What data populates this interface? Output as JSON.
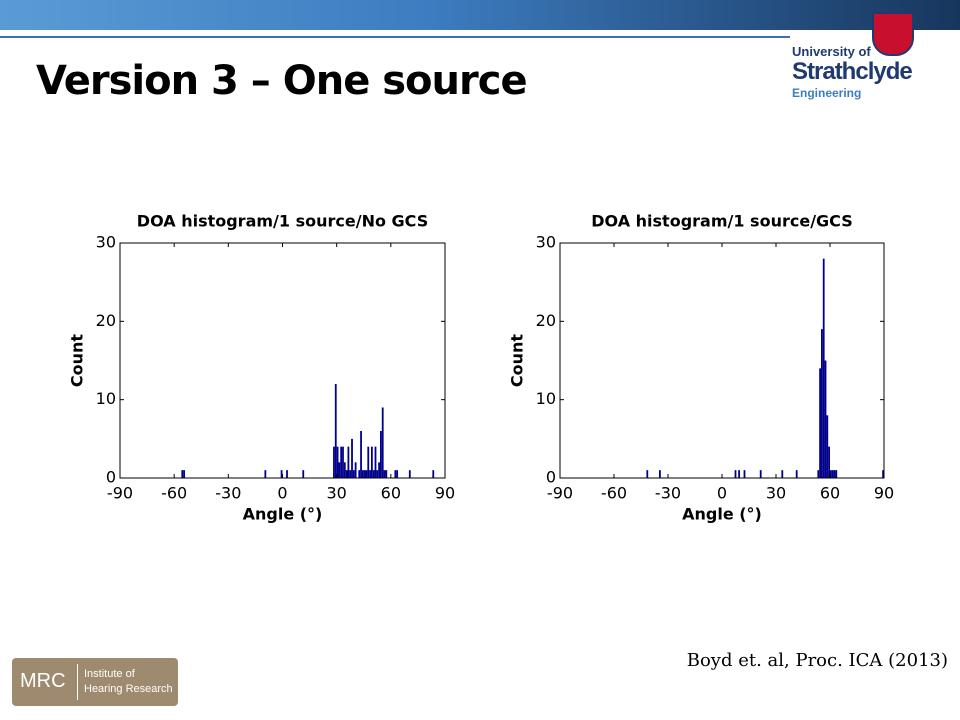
{
  "slide": {
    "title": "Version 3 – One source",
    "citation": "Boyd et. al, Proc. ICA (2013)",
    "logo": {
      "line1": "University of",
      "line2": "Strathclyde",
      "line3": "Engineering"
    },
    "mrc": {
      "name": "MRC",
      "line1": "Institute of",
      "line2": "Hearing Research"
    }
  },
  "chart_data": [
    {
      "type": "histogram",
      "title": "DOA histogram/1 source/No GCS",
      "x_label": "Angle (°)",
      "y_label": "Count",
      "color": "#00008b",
      "bins": [
        -90,
        -89,
        -88,
        -87,
        -86,
        -85,
        -84,
        -83,
        -82,
        -81,
        -80,
        -79,
        -78,
        -77,
        -76,
        -75,
        -74,
        -73,
        -72,
        -71,
        -70,
        -69,
        -68,
        -67,
        -66,
        -65,
        -64,
        -63,
        -62,
        -61,
        -60,
        -59,
        -58,
        -57,
        -56,
        -55,
        -54,
        -53,
        -52,
        -51,
        -50,
        -49,
        -48,
        -47,
        -46,
        -45,
        -44,
        -43,
        -42,
        -41,
        -40,
        -39,
        -38,
        -37,
        -36,
        -35,
        -34,
        -33,
        -32,
        -31,
        -30,
        -29,
        -28,
        -27,
        -26,
        -25,
        -24,
        -23,
        -22,
        -21,
        -20,
        -19,
        -18,
        -17,
        -16,
        -15,
        -14,
        -13,
        -12,
        -11,
        -10,
        -9,
        -8,
        -7,
        -6,
        -5,
        -4,
        -3,
        -2,
        -1,
        0,
        1,
        2,
        3,
        4,
        5,
        6,
        7,
        8,
        9,
        10,
        11,
        12,
        13,
        14,
        15,
        16,
        17,
        18,
        19,
        20,
        21,
        22,
        23,
        24,
        25,
        26,
        27,
        28,
        29,
        30,
        31,
        32,
        33,
        34,
        35,
        36,
        37,
        38,
        39,
        40,
        41,
        42,
        43,
        44,
        45,
        46,
        47,
        48,
        49,
        50,
        51,
        52,
        53,
        54,
        55,
        56,
        57,
        58,
        59,
        60,
        61,
        62,
        63,
        64,
        65,
        66,
        67,
        68,
        69,
        70,
        71,
        72,
        73,
        74,
        75,
        76,
        77,
        78,
        79,
        80,
        81,
        82,
        83,
        84,
        85,
        86,
        87,
        88,
        89,
        90
      ],
      "counts": [
        0,
        0,
        0,
        0,
        0,
        0,
        0,
        0,
        0,
        0,
        0,
        0,
        0,
        0,
        0,
        0,
        0,
        0,
        0,
        0,
        0,
        0,
        0,
        0,
        0,
        0,
        0,
        0,
        0,
        0,
        0,
        0,
        0,
        0,
        1,
        1,
        0,
        0,
        0,
        0,
        0,
        0,
        0,
        0,
        0,
        0,
        0,
        0,
        0,
        0,
        0,
        0,
        0,
        0,
        0,
        0,
        0,
        0,
        0,
        0,
        0,
        0,
        0,
        0,
        0,
        0,
        0,
        0,
        0,
        0,
        0,
        0,
        0,
        0,
        0,
        0,
        0,
        0,
        0,
        0,
        1,
        0,
        0,
        0,
        0,
        0,
        0,
        0,
        0,
        1,
        0,
        0,
        1,
        0,
        0,
        0,
        0,
        0,
        0,
        0,
        0,
        1,
        0,
        0,
        0,
        0,
        0,
        0,
        0,
        0,
        0,
        0,
        0,
        0,
        0,
        0,
        0,
        0,
        4,
        12,
        4,
        2,
        4,
        4,
        2,
        1,
        4,
        1,
        5,
        1,
        2,
        0,
        1,
        6,
        1,
        1,
        1,
        4,
        1,
        4,
        1,
        4,
        1,
        2,
        6,
        9,
        1,
        1,
        0,
        0,
        0,
        0,
        1,
        1,
        0,
        0,
        0,
        0,
        0,
        0,
        1,
        0,
        0,
        0,
        0,
        0,
        0,
        0,
        0,
        0,
        0,
        0,
        0,
        1,
        0,
        0,
        0,
        0,
        0,
        0
      ],
      "xlim": [
        -90,
        90
      ],
      "xticks": [
        -90,
        -60,
        -30,
        0,
        30,
        60,
        90
      ],
      "ylim": [
        0,
        30
      ],
      "yticks": [
        0,
        10,
        20,
        30
      ],
      "grid": false
    },
    {
      "type": "histogram",
      "title": "DOA histogram/1 source/GCS",
      "x_label": "Angle (°)",
      "y_label": "Count",
      "color": "#00008b",
      "bins": [
        -90,
        -89,
        -88,
        -87,
        -86,
        -85,
        -84,
        -83,
        -82,
        -81,
        -80,
        -79,
        -78,
        -77,
        -76,
        -75,
        -74,
        -73,
        -72,
        -71,
        -70,
        -69,
        -68,
        -67,
        -66,
        -65,
        -64,
        -63,
        -62,
        -61,
        -60,
        -59,
        -58,
        -57,
        -56,
        -55,
        -54,
        -53,
        -52,
        -51,
        -50,
        -49,
        -48,
        -47,
        -46,
        -45,
        -44,
        -43,
        -42,
        -41,
        -40,
        -39,
        -38,
        -37,
        -36,
        -35,
        -34,
        -33,
        -32,
        -31,
        -30,
        -29,
        -28,
        -27,
        -26,
        -25,
        -24,
        -23,
        -22,
        -21,
        -20,
        -19,
        -18,
        -17,
        -16,
        -15,
        -14,
        -13,
        -12,
        -11,
        -10,
        -9,
        -8,
        -7,
        -6,
        -5,
        -4,
        -3,
        -2,
        -1,
        0,
        1,
        2,
        3,
        4,
        5,
        6,
        7,
        8,
        9,
        10,
        11,
        12,
        13,
        14,
        15,
        16,
        17,
        18,
        19,
        20,
        21,
        22,
        23,
        24,
        25,
        26,
        27,
        28,
        29,
        30,
        31,
        32,
        33,
        34,
        35,
        36,
        37,
        38,
        39,
        40,
        41,
        42,
        43,
        44,
        45,
        46,
        47,
        48,
        49,
        50,
        51,
        52,
        53,
        54,
        55,
        56,
        57,
        58,
        59,
        60,
        61,
        62,
        63,
        64,
        65,
        66,
        67,
        68,
        69,
        70,
        71,
        72,
        73,
        74,
        75,
        76,
        77,
        78,
        79,
        80,
        81,
        82,
        83,
        84,
        85,
        86,
        87,
        88,
        89,
        90
      ],
      "counts": [
        0,
        0,
        0,
        0,
        0,
        0,
        0,
        0,
        0,
        0,
        0,
        0,
        0,
        0,
        0,
        0,
        0,
        0,
        0,
        0,
        0,
        0,
        0,
        0,
        0,
        0,
        0,
        0,
        0,
        0,
        0,
        0,
        0,
        0,
        0,
        0,
        0,
        0,
        0,
        0,
        0,
        0,
        0,
        0,
        0,
        0,
        0,
        0,
        1,
        0,
        0,
        0,
        0,
        0,
        0,
        1,
        0,
        0,
        0,
        0,
        0,
        0,
        0,
        0,
        0,
        0,
        0,
        0,
        0,
        0,
        0,
        0,
        0,
        0,
        0,
        0,
        0,
        0,
        0,
        0,
        0,
        0,
        0,
        0,
        0,
        0,
        0,
        0,
        0,
        0,
        0,
        0,
        0,
        0,
        0,
        0,
        0,
        1,
        0,
        1,
        0,
        0,
        1,
        0,
        0,
        0,
        0,
        0,
        0,
        0,
        0,
        1,
        0,
        0,
        0,
        0,
        0,
        0,
        0,
        0,
        0,
        0,
        0,
        1,
        0,
        0,
        0,
        0,
        0,
        0,
        0,
        1,
        0,
        0,
        0,
        0,
        0,
        0,
        0,
        0,
        0,
        0,
        0,
        1,
        14,
        19,
        28,
        15,
        8,
        4,
        1,
        1,
        1,
        1,
        0,
        0,
        0,
        0,
        0,
        0,
        0,
        0,
        0,
        0,
        0,
        0,
        0,
        0,
        0,
        0,
        0,
        0,
        0,
        0,
        0,
        0,
        0,
        0,
        0,
        1
      ],
      "xlim": [
        -90,
        90
      ],
      "xticks": [
        -90,
        -60,
        -30,
        0,
        30,
        60,
        90
      ],
      "ylim": [
        0,
        30
      ],
      "yticks": [
        0,
        10,
        20,
        30
      ],
      "grid": false
    }
  ]
}
